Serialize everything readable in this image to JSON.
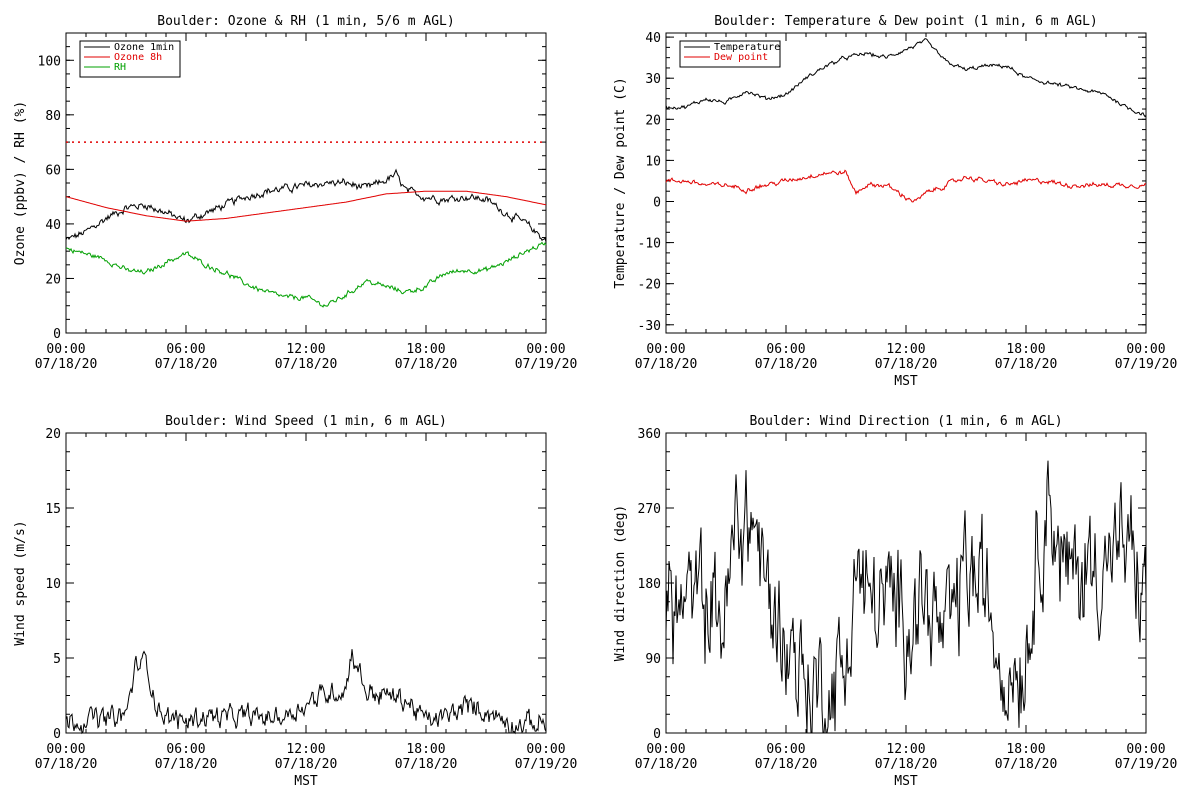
{
  "colors": {
    "background": "#ffffff",
    "axes": "#000000",
    "ozone_1min": "#000000",
    "ozone_8h": "#e00000",
    "rh": "#00a000",
    "temperature": "#000000",
    "dew_point": "#e00000",
    "wind_speed": "#000000",
    "wind_direction": "#000000",
    "threshold": "#e00000"
  },
  "chart_data": [
    {
      "id": "ozone-rh",
      "type": "line",
      "title": "Boulder: Ozone & RH (1 min, 5/6 m AGL)",
      "xlabel": "",
      "ylabel": "Ozone (ppbv) / RH (%)",
      "xlim": [
        0,
        24
      ],
      "ylim": [
        0,
        110
      ],
      "yticks": [
        0,
        20,
        40,
        60,
        80,
        100
      ],
      "xticks": [
        {
          "x": 0,
          "top": "00:00",
          "bottom": "07/18/20"
        },
        {
          "x": 6,
          "top": "06:00",
          "bottom": "07/18/20"
        },
        {
          "x": 12,
          "top": "12:00",
          "bottom": "07/18/20"
        },
        {
          "x": 18,
          "top": "18:00",
          "bottom": "07/18/20"
        },
        {
          "x": 24,
          "top": "00:00",
          "bottom": "07/19/20"
        }
      ],
      "legend": {
        "position": "top-left"
      },
      "reference_line": {
        "y": 70,
        "style": "dotted",
        "color": "#e00000"
      },
      "series": [
        {
          "name": "Ozone 1min",
          "color": "#000000",
          "noise": 1.2,
          "x": [
            0,
            1,
            2,
            3,
            4,
            5,
            6,
            7,
            8,
            9,
            10,
            11,
            12,
            13,
            14,
            15,
            16,
            16.5,
            17,
            18,
            19,
            20,
            21,
            22,
            23,
            24
          ],
          "y": [
            34,
            37,
            42,
            46,
            47,
            44,
            41,
            44,
            47,
            50,
            52,
            53,
            54,
            55,
            55,
            53,
            56,
            58,
            52,
            50,
            49,
            50,
            49,
            44,
            40,
            34
          ]
        },
        {
          "name": "Ozone 8h",
          "color": "#e00000",
          "noise": 0,
          "x": [
            0,
            2,
            4,
            6,
            8,
            10,
            12,
            14,
            16,
            18,
            20,
            22,
            24
          ],
          "y": [
            50,
            46,
            43,
            41,
            42,
            44,
            46,
            48,
            51,
            52,
            52,
            50,
            47
          ]
        },
        {
          "name": "RH",
          "color": "#00a000",
          "noise": 0.8,
          "x": [
            0,
            1,
            2,
            3,
            4,
            5,
            6,
            7,
            8,
            9,
            10,
            11,
            12,
            13,
            14,
            15,
            16,
            17,
            18,
            19,
            20,
            21,
            22,
            23,
            24
          ],
          "y": [
            31,
            29,
            27,
            23,
            22,
            26,
            29,
            25,
            22,
            18,
            15,
            13,
            13,
            10,
            14,
            19,
            17,
            15,
            17,
            22,
            23,
            23,
            26,
            30,
            33
          ]
        }
      ]
    },
    {
      "id": "temperature-dewpoint",
      "type": "line",
      "title": "Boulder: Temperature & Dew point (1 min, 6 m AGL)",
      "xlabel": "MST",
      "ylabel": "Temperature / Dew point (C)",
      "xlim": [
        0,
        24
      ],
      "ylim": [
        -32,
        41
      ],
      "yticks": [
        -30,
        -20,
        -10,
        0,
        10,
        20,
        30,
        40
      ],
      "xticks": [
        {
          "x": 0,
          "top": "00:00",
          "bottom": "07/18/20"
        },
        {
          "x": 6,
          "top": "06:00",
          "bottom": "07/18/20"
        },
        {
          "x": 12,
          "top": "12:00",
          "bottom": "07/18/20"
        },
        {
          "x": 18,
          "top": "18:00",
          "bottom": "07/18/20"
        },
        {
          "x": 24,
          "top": "00:00",
          "bottom": "07/19/20"
        }
      ],
      "legend": {
        "position": "top-left"
      },
      "series": [
        {
          "name": "Temperature",
          "color": "#000000",
          "noise": 0.4,
          "x": [
            0,
            1,
            1.5,
            2,
            3,
            4,
            5,
            6,
            7,
            8,
            9,
            10,
            11,
            12,
            12.5,
            13,
            14,
            15,
            16,
            17,
            18,
            19,
            20,
            21,
            22,
            23,
            24
          ],
          "y": [
            23,
            23,
            24,
            25,
            24,
            27,
            25,
            26,
            30,
            33,
            35,
            36,
            35,
            37,
            38,
            39,
            34,
            32,
            33,
            33,
            30,
            29,
            28,
            27,
            26,
            23,
            21
          ]
        },
        {
          "name": "Dew point",
          "color": "#e00000",
          "noise": 0.5,
          "x": [
            0,
            1,
            2,
            3,
            4,
            5,
            6,
            7,
            8,
            9,
            9.5,
            10,
            11,
            12,
            12.5,
            13,
            14,
            15,
            16,
            17,
            18,
            19,
            20,
            21,
            22,
            23,
            24
          ],
          "y": [
            5,
            5,
            4,
            4,
            3,
            4,
            5,
            6,
            7,
            7,
            2,
            4,
            4,
            1,
            0,
            2,
            4,
            6,
            5,
            4,
            5,
            5,
            4,
            4,
            4,
            4,
            4
          ]
        }
      ]
    },
    {
      "id": "wind-speed",
      "type": "line",
      "title": "Boulder: Wind Speed (1 min, 6 m AGL)",
      "xlabel": "MST",
      "ylabel": "Wind speed (m/s)",
      "xlim": [
        0,
        24
      ],
      "ylim": [
        0,
        20
      ],
      "yticks": [
        0,
        5,
        10,
        15,
        20
      ],
      "xticks": [
        {
          "x": 0,
          "top": "00:00",
          "bottom": "07/18/20"
        },
        {
          "x": 6,
          "top": "06:00",
          "bottom": "07/18/20"
        },
        {
          "x": 12,
          "top": "12:00",
          "bottom": "07/18/20"
        },
        {
          "x": 18,
          "top": "18:00",
          "bottom": "07/18/20"
        },
        {
          "x": 24,
          "top": "00:00",
          "bottom": "07/19/20"
        }
      ],
      "series": [
        {
          "name": "",
          "color": "#000000",
          "noise": 0.6,
          "x": [
            0,
            1,
            2,
            3,
            3.5,
            4,
            4.5,
            5,
            6,
            7,
            8,
            9,
            10,
            11,
            12,
            13,
            14,
            14.3,
            15,
            16,
            17,
            18,
            19,
            20,
            21,
            22,
            23,
            24
          ],
          "y": [
            0.8,
            1,
            0.9,
            1.2,
            4.5,
            4.8,
            2,
            1,
            0.8,
            1.2,
            1,
            1.1,
            1,
            1.2,
            2,
            2.6,
            3,
            5.5,
            2.8,
            2.5,
            2.2,
            0.8,
            1,
            1.8,
            1.5,
            0.8,
            0.6,
            0.7
          ]
        }
      ]
    },
    {
      "id": "wind-direction",
      "type": "line",
      "title": "Boulder: Wind Direction (1 min, 6 m AGL)",
      "xlabel": "MST",
      "ylabel": "Wind direction (deg)",
      "xlim": [
        0,
        24
      ],
      "ylim": [
        0,
        360
      ],
      "yticks": [
        0,
        90,
        180,
        270,
        360
      ],
      "xticks": [
        {
          "x": 0,
          "top": "00:00",
          "bottom": "07/18/20"
        },
        {
          "x": 6,
          "top": "06:00",
          "bottom": "07/18/20"
        },
        {
          "x": 12,
          "top": "12:00",
          "bottom": "07/18/20"
        },
        {
          "x": 18,
          "top": "18:00",
          "bottom": "07/18/20"
        },
        {
          "x": 24,
          "top": "00:00",
          "bottom": "07/19/20"
        }
      ],
      "series": [
        {
          "name": "",
          "color": "#000000",
          "noise": 60,
          "x": [
            0,
            1,
            2,
            3,
            3.5,
            4,
            4.5,
            5,
            6,
            7,
            8,
            9,
            9.5,
            10,
            11,
            12,
            13,
            14,
            15,
            16,
            17,
            18,
            19,
            20,
            21,
            22,
            23,
            24
          ],
          "y": [
            150,
            150,
            160,
            140,
            250,
            255,
            250,
            160,
            120,
            60,
            50,
            80,
            200,
            160,
            150,
            150,
            160,
            100,
            200,
            160,
            80,
            100,
            300,
            180,
            200,
            210,
            220,
            160
          ]
        }
      ]
    }
  ]
}
